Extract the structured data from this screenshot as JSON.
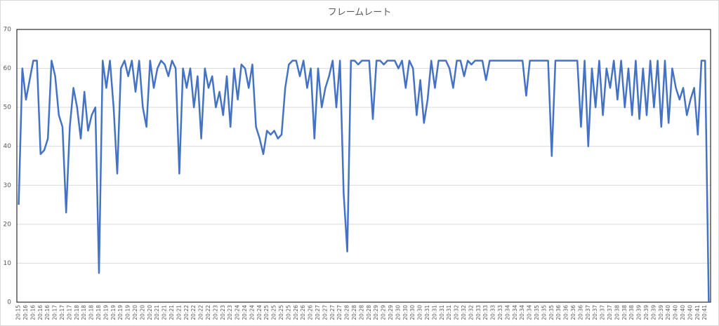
{
  "chart_data": {
    "type": "line",
    "title": "フレームレート",
    "categories": [
      "20:15",
      null,
      "20:16",
      null,
      "20:16",
      null,
      "20:16",
      null,
      "20:16",
      null,
      "20:17",
      null,
      "20:17",
      null,
      "20:17",
      null,
      "20:18",
      null,
      "20:18",
      null,
      "20:18",
      null,
      "20:18",
      null,
      "20:19",
      null,
      "20:19",
      null,
      "20:19",
      null,
      "20:19",
      null,
      "20:20",
      null,
      "20:20",
      null,
      "20:20",
      null,
      "20:21",
      null,
      "20:21",
      null,
      "20:21",
      null,
      "20:21",
      null,
      "20:22",
      null,
      "20:22",
      null,
      "20:22",
      null,
      "20:22",
      null,
      "20:23",
      null,
      "20:23",
      null,
      "20:23",
      null,
      "20:24",
      null,
      "20:24",
      null,
      "20:24",
      null,
      "20:24",
      null,
      "20:25",
      null,
      "20:25",
      null,
      "20:25",
      null,
      "20:25",
      null,
      "20:26",
      null,
      "20:26",
      null,
      "20:26",
      null,
      "20:27",
      null,
      "20:27",
      null,
      "20:27",
      null,
      "20:27",
      null,
      "20:28",
      null,
      "20:28",
      null,
      "20:28",
      null,
      "20:28",
      null,
      "20:29",
      null,
      "20:29",
      null,
      "20:29",
      null,
      "20:30",
      null,
      "20:30",
      null,
      "20:30",
      null,
      "20:30",
      null,
      "20:31",
      null,
      "20:31",
      null,
      "20:31",
      null,
      "20:31",
      null,
      "20:32",
      null,
      "20:32",
      null,
      "20:32",
      null,
      "20:33",
      null,
      "20:33",
      null,
      "20:33",
      null,
      "20:33",
      null,
      "20:34",
      null,
      "20:34",
      null,
      "20:34",
      null,
      "20:34",
      null,
      "20:35",
      null,
      "20:35",
      null,
      "20:35",
      null,
      "20:36",
      null,
      "20:36",
      null,
      "20:36",
      null,
      "20:36",
      null,
      "20:37",
      null,
      "20:37",
      null,
      "20:37",
      null,
      "20:37",
      null,
      "20:38",
      null,
      "20:38",
      null,
      "20:38",
      null,
      "20:39",
      null,
      "20:39",
      null,
      "20:39",
      null,
      "20:39",
      null,
      "20:40",
      null,
      "20:40",
      null,
      "20:40",
      null,
      "20:40",
      null,
      "20:41",
      null,
      "20:41",
      null
    ],
    "values": [
      25,
      60,
      52,
      57,
      62,
      62,
      38,
      39,
      42,
      62,
      58,
      48,
      45,
      23,
      45,
      55,
      50,
      42,
      54,
      44,
      48,
      50,
      7.5,
      62,
      55,
      62,
      50,
      33,
      60,
      62,
      58,
      62,
      54,
      62,
      50,
      45,
      62,
      55,
      60,
      62,
      61,
      58,
      62,
      60,
      33,
      60,
      55,
      60,
      50,
      58,
      42,
      60,
      55,
      58,
      50,
      54,
      48,
      58,
      45,
      60,
      52,
      61,
      60,
      55,
      61,
      45,
      42,
      38,
      44,
      43,
      44,
      42,
      43,
      55,
      61,
      62,
      62,
      58,
      62,
      55,
      60,
      42,
      60,
      50,
      55,
      58,
      62,
      50,
      62,
      28,
      13,
      62,
      62,
      61,
      62,
      62,
      62,
      47,
      62,
      62,
      61,
      62,
      62,
      62,
      60,
      62,
      55,
      62,
      60,
      48,
      57,
      46,
      52,
      62,
      55,
      62,
      62,
      62,
      60,
      55,
      62,
      62,
      58,
      62,
      61,
      62,
      62,
      62,
      57,
      62,
      62,
      62,
      62,
      62,
      62,
      62,
      62,
      62,
      62,
      53,
      62,
      62,
      62,
      62,
      62,
      62,
      37.5,
      62,
      62,
      62,
      62,
      62,
      62,
      62,
      45,
      62,
      40,
      60,
      50,
      62,
      48,
      60,
      55,
      62,
      52,
      62,
      50,
      60,
      48,
      62,
      47,
      60,
      48,
      62,
      50,
      62,
      45,
      62,
      46,
      60,
      55,
      52,
      55,
      48,
      52,
      55,
      43,
      62,
      62,
      0
    ],
    "color": "#4472c4",
    "ylim": [
      0,
      70
    ],
    "yticks": [
      0,
      10,
      20,
      30,
      40,
      50,
      60,
      70
    ],
    "grid": true
  }
}
